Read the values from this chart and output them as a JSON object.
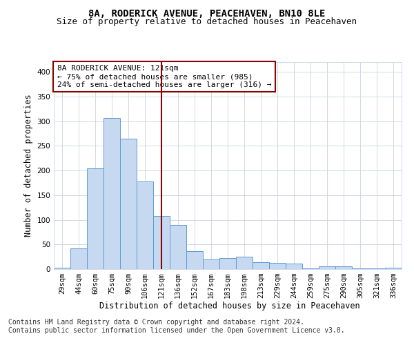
{
  "title": "8A, RODERICK AVENUE, PEACEHAVEN, BN10 8LE",
  "subtitle": "Size of property relative to detached houses in Peacehaven",
  "xlabel": "Distribution of detached houses by size in Peacehaven",
  "ylabel": "Number of detached properties",
  "categories": [
    "29sqm",
    "44sqm",
    "60sqm",
    "75sqm",
    "90sqm",
    "106sqm",
    "121sqm",
    "136sqm",
    "152sqm",
    "167sqm",
    "183sqm",
    "198sqm",
    "213sqm",
    "229sqm",
    "244sqm",
    "259sqm",
    "275sqm",
    "290sqm",
    "305sqm",
    "321sqm",
    "336sqm"
  ],
  "values": [
    3,
    42,
    205,
    307,
    265,
    178,
    108,
    90,
    37,
    20,
    22,
    25,
    14,
    12,
    11,
    1,
    6,
    6,
    2,
    1,
    3
  ],
  "bar_color": "#c6d9f1",
  "bar_edge_color": "#5b9bd5",
  "highlight_index": 6,
  "highlight_line_color": "#8b0000",
  "annotation_text": "8A RODERICK AVENUE: 121sqm\n← 75% of detached houses are smaller (985)\n24% of semi-detached houses are larger (316) →",
  "annotation_box_color": "#ffffff",
  "annotation_box_edge_color": "#8b0000",
  "ylim": [
    0,
    420
  ],
  "yticks": [
    0,
    50,
    100,
    150,
    200,
    250,
    300,
    350,
    400
  ],
  "footer_text": "Contains HM Land Registry data © Crown copyright and database right 2024.\nContains public sector information licensed under the Open Government Licence v3.0.",
  "bg_color": "#ffffff",
  "grid_color": "#d0d8e8",
  "title_fontsize": 10,
  "subtitle_fontsize": 9,
  "axis_label_fontsize": 8.5,
  "tick_fontsize": 7.5,
  "annotation_fontsize": 8,
  "footer_fontsize": 7
}
